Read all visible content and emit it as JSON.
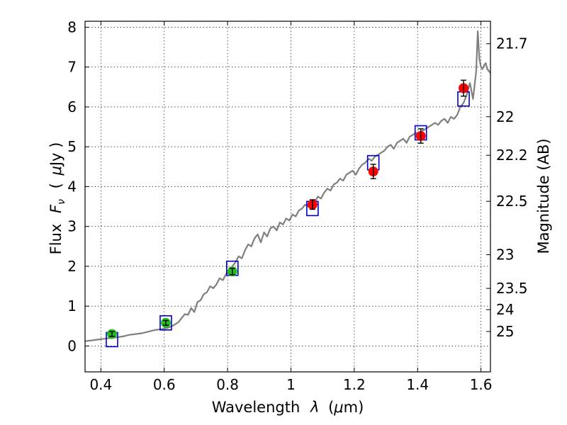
{
  "chart_data": {
    "type": "scatter",
    "xlabel_text": "Wavelength",
    "xlabel_symbol": "λ",
    "xlabel_unit_open": "(",
    "xlabel_unit_mu": "μ",
    "xlabel_unit_rest": "m)",
    "ylabel_text": "Flux",
    "ylabel_symbol": "F",
    "ylabel_sub": "ν",
    "ylabel_unit_open": "(",
    "ylabel_unit_mu": "μ",
    "ylabel_unit_rest": "Jy )",
    "y2label": "Magnitude (AB)",
    "xlim": [
      0.35,
      1.63
    ],
    "ylim": [
      -0.65,
      8.15
    ],
    "x_ticks": [
      {
        "value": 0.4,
        "label": "0.4"
      },
      {
        "value": 0.6,
        "label": "0.6"
      },
      {
        "value": 0.8,
        "label": "0.8"
      },
      {
        "value": 1.0,
        "label": "1"
      },
      {
        "value": 1.2,
        "label": "1.2"
      },
      {
        "value": 1.4,
        "label": "1.4"
      },
      {
        "value": 1.6,
        "label": "1.6"
      }
    ],
    "y_ticks": [
      {
        "value": 0,
        "label": "0"
      },
      {
        "value": 1,
        "label": "1"
      },
      {
        "value": 2,
        "label": "2"
      },
      {
        "value": 3,
        "label": "3"
      },
      {
        "value": 4,
        "label": "4"
      },
      {
        "value": 5,
        "label": "5"
      },
      {
        "value": 6,
        "label": "6"
      },
      {
        "value": 7,
        "label": "7"
      },
      {
        "value": 8,
        "label": "8"
      }
    ],
    "mag_ticks": [
      {
        "mag": 21.7,
        "label": "21.7"
      },
      {
        "mag": 22,
        "label": "22"
      },
      {
        "mag": 22.2,
        "label": "22.2"
      },
      {
        "mag": 22.5,
        "label": "22.5"
      },
      {
        "mag": 23,
        "label": "23"
      },
      {
        "mag": 23.5,
        "label": "23.5"
      },
      {
        "mag": 24,
        "label": "24"
      },
      {
        "mag": 25,
        "label": "25"
      }
    ],
    "series": [
      {
        "name": "model-spectrum",
        "kind": "line",
        "color": "#7f7f7f",
        "x": [
          0.35,
          0.37,
          0.39,
          0.41,
          0.43,
          0.45,
          0.47,
          0.49,
          0.51,
          0.53,
          0.55,
          0.57,
          0.59,
          0.61,
          0.63,
          0.645,
          0.655,
          0.665,
          0.675,
          0.685,
          0.695,
          0.705,
          0.715,
          0.725,
          0.735,
          0.745,
          0.755,
          0.765,
          0.775,
          0.785,
          0.795,
          0.805,
          0.815,
          0.825,
          0.835,
          0.845,
          0.855,
          0.865,
          0.875,
          0.885,
          0.895,
          0.905,
          0.915,
          0.925,
          0.935,
          0.945,
          0.955,
          0.965,
          0.975,
          0.985,
          0.995,
          1.005,
          1.015,
          1.025,
          1.035,
          1.045,
          1.055,
          1.065,
          1.075,
          1.085,
          1.095,
          1.105,
          1.115,
          1.125,
          1.135,
          1.145,
          1.155,
          1.165,
          1.175,
          1.185,
          1.195,
          1.205,
          1.215,
          1.225,
          1.235,
          1.245,
          1.255,
          1.265,
          1.275,
          1.285,
          1.295,
          1.305,
          1.315,
          1.325,
          1.335,
          1.345,
          1.355,
          1.365,
          1.375,
          1.385,
          1.395,
          1.405,
          1.415,
          1.425,
          1.435,
          1.445,
          1.455,
          1.465,
          1.475,
          1.485,
          1.495,
          1.505,
          1.515,
          1.525,
          1.535,
          1.545,
          1.555,
          1.565,
          1.575,
          1.58,
          1.585,
          1.59,
          1.595,
          1.6,
          1.605,
          1.61,
          1.615,
          1.62,
          1.63
        ],
        "y": [
          0.12,
          0.14,
          0.16,
          0.18,
          0.2,
          0.22,
          0.24,
          0.28,
          0.3,
          0.32,
          0.36,
          0.4,
          0.42,
          0.45,
          0.52,
          0.6,
          0.7,
          0.8,
          0.78,
          0.95,
          0.85,
          1.1,
          1.15,
          1.3,
          1.35,
          1.5,
          1.45,
          1.55,
          1.7,
          1.65,
          1.8,
          1.9,
          2.0,
          2.1,
          2.25,
          2.2,
          2.4,
          2.55,
          2.5,
          2.7,
          2.8,
          2.6,
          2.85,
          2.75,
          2.95,
          3.0,
          2.9,
          3.1,
          3.05,
          3.2,
          3.15,
          3.3,
          3.25,
          3.4,
          3.45,
          3.55,
          3.5,
          3.65,
          3.6,
          3.75,
          3.7,
          3.85,
          3.95,
          3.9,
          4.05,
          4.1,
          4.2,
          4.15,
          4.3,
          4.35,
          4.4,
          4.3,
          4.45,
          4.55,
          4.6,
          4.7,
          4.65,
          4.75,
          4.8,
          4.85,
          4.9,
          5.0,
          5.05,
          4.95,
          5.1,
          5.15,
          5.2,
          5.1,
          5.25,
          5.3,
          5.35,
          5.3,
          5.4,
          5.45,
          5.5,
          5.55,
          5.6,
          5.55,
          5.65,
          5.7,
          5.6,
          5.75,
          5.7,
          5.8,
          6.0,
          6.1,
          6.3,
          6.6,
          6.2,
          6.55,
          6.9,
          7.9,
          7.2,
          7.0,
          6.95,
          7.05,
          7.1,
          6.95,
          6.85
        ]
      },
      {
        "name": "model-photometry",
        "kind": "open-square",
        "color": "#0000cc",
        "x": [
          0.435,
          0.605,
          0.815,
          1.068,
          1.26,
          1.41,
          1.545
        ],
        "y": [
          0.16,
          0.58,
          1.95,
          3.45,
          4.6,
          5.35,
          6.2
        ]
      },
      {
        "name": "observed-optical",
        "kind": "filled-circle",
        "color": "#22bb22",
        "x": [
          0.435,
          0.605,
          0.815
        ],
        "y": [
          0.3,
          0.58,
          1.87
        ],
        "yerr": [
          0.06,
          0.06,
          0.08
        ]
      },
      {
        "name": "observed-nir",
        "kind": "filled-circle",
        "color": "#ff0000",
        "x": [
          1.068,
          1.26,
          1.41,
          1.545
        ],
        "y": [
          3.55,
          4.38,
          5.27,
          6.47
        ],
        "yerr": [
          0.12,
          0.18,
          0.18,
          0.2
        ]
      }
    ]
  }
}
